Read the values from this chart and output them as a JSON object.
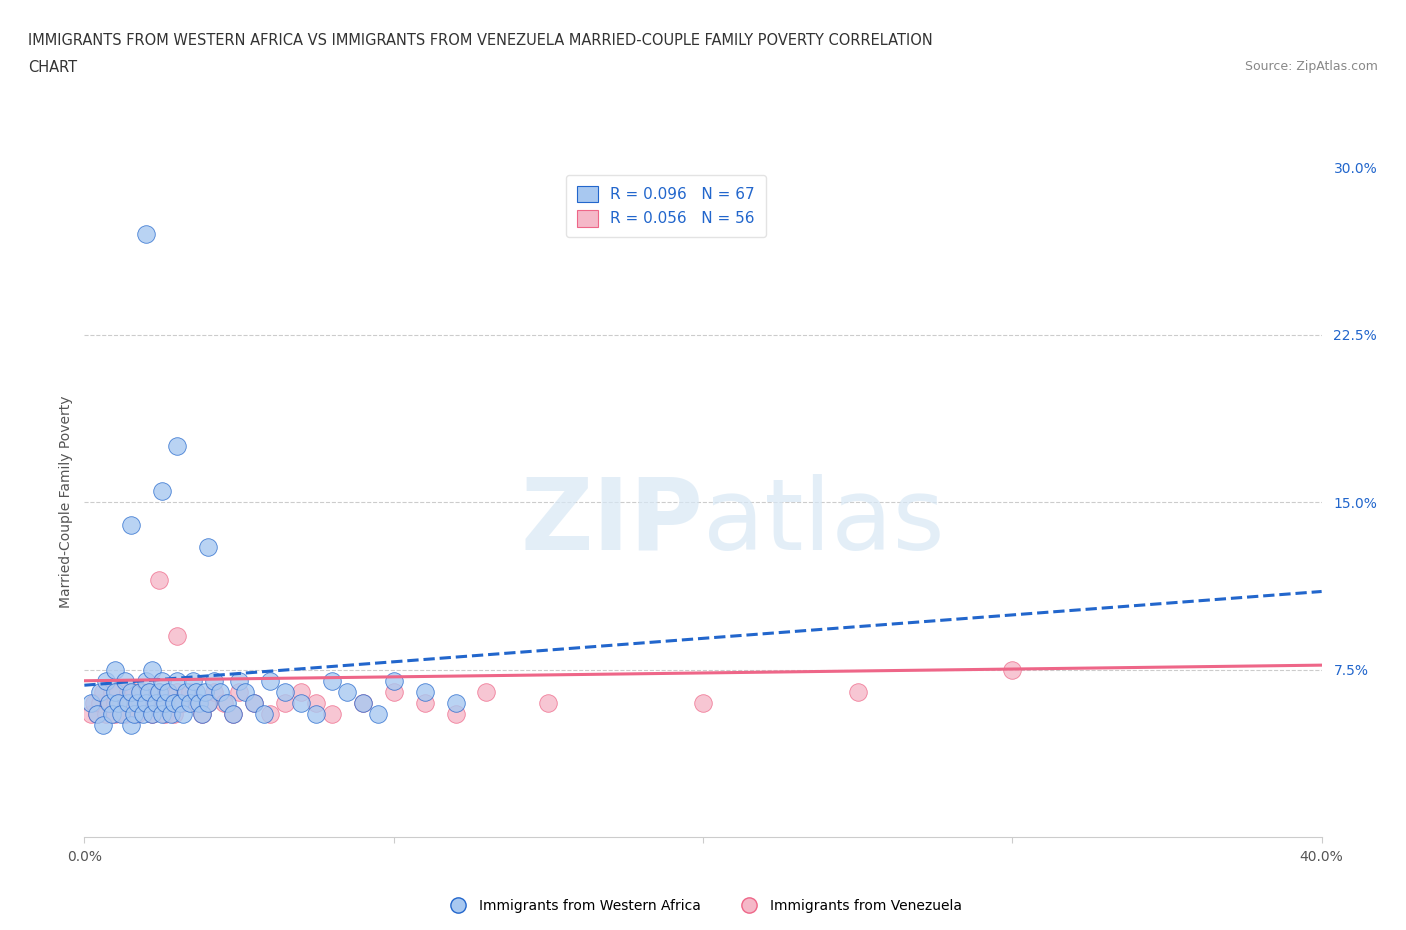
{
  "title_line1": "IMMIGRANTS FROM WESTERN AFRICA VS IMMIGRANTS FROM VENEZUELA MARRIED-COUPLE FAMILY POVERTY CORRELATION",
  "title_line2": "CHART",
  "source": "Source: ZipAtlas.com",
  "ylabel": "Married-Couple Family Poverty",
  "xlim": [
    0.0,
    0.4
  ],
  "ylim": [
    0.0,
    0.3
  ],
  "xticks": [
    0.0,
    0.1,
    0.2,
    0.3,
    0.4
  ],
  "xticklabels": [
    "0.0%",
    "",
    "",
    "",
    "40.0%"
  ],
  "yticks_right": [
    0.075,
    0.15,
    0.225,
    0.3
  ],
  "yticklabels_right": [
    "7.5%",
    "15.0%",
    "22.5%",
    "30.0%"
  ],
  "blue_color": "#A8C8F0",
  "pink_color": "#F5B8C8",
  "blue_line_color": "#2266CC",
  "pink_line_color": "#EE6688",
  "blue_R": 0.096,
  "blue_N": 67,
  "pink_R": 0.056,
  "pink_N": 56,
  "legend_label_blue": "Immigrants from Western Africa",
  "legend_label_pink": "Immigrants from Venezuela",
  "hline_y": [
    0.075,
    0.15,
    0.225
  ],
  "hline_color": "#CCCCCC",
  "background_color": "#FFFFFF",
  "tick_color_right": "#2266CC",
  "blue_scatter_x": [
    0.002,
    0.004,
    0.005,
    0.006,
    0.007,
    0.008,
    0.009,
    0.01,
    0.01,
    0.011,
    0.012,
    0.013,
    0.014,
    0.015,
    0.015,
    0.016,
    0.017,
    0.018,
    0.019,
    0.02,
    0.02,
    0.021,
    0.022,
    0.022,
    0.023,
    0.024,
    0.025,
    0.025,
    0.026,
    0.027,
    0.028,
    0.029,
    0.03,
    0.031,
    0.032,
    0.033,
    0.034,
    0.035,
    0.036,
    0.037,
    0.038,
    0.039,
    0.04,
    0.042,
    0.044,
    0.046,
    0.048,
    0.05,
    0.052,
    0.055,
    0.058,
    0.06,
    0.065,
    0.07,
    0.075,
    0.08,
    0.085,
    0.09,
    0.095,
    0.1,
    0.11,
    0.12,
    0.04,
    0.025,
    0.03,
    0.02,
    0.015
  ],
  "blue_scatter_y": [
    0.06,
    0.055,
    0.065,
    0.05,
    0.07,
    0.06,
    0.055,
    0.075,
    0.065,
    0.06,
    0.055,
    0.07,
    0.06,
    0.065,
    0.05,
    0.055,
    0.06,
    0.065,
    0.055,
    0.06,
    0.07,
    0.065,
    0.055,
    0.075,
    0.06,
    0.065,
    0.055,
    0.07,
    0.06,
    0.065,
    0.055,
    0.06,
    0.07,
    0.06,
    0.055,
    0.065,
    0.06,
    0.07,
    0.065,
    0.06,
    0.055,
    0.065,
    0.06,
    0.07,
    0.065,
    0.06,
    0.055,
    0.07,
    0.065,
    0.06,
    0.055,
    0.07,
    0.065,
    0.06,
    0.055,
    0.07,
    0.065,
    0.06,
    0.055,
    0.07,
    0.065,
    0.06,
    0.13,
    0.155,
    0.175,
    0.27,
    0.14
  ],
  "pink_scatter_x": [
    0.002,
    0.003,
    0.004,
    0.005,
    0.006,
    0.007,
    0.008,
    0.009,
    0.01,
    0.01,
    0.011,
    0.012,
    0.013,
    0.014,
    0.015,
    0.016,
    0.017,
    0.018,
    0.019,
    0.02,
    0.021,
    0.022,
    0.023,
    0.024,
    0.025,
    0.026,
    0.027,
    0.028,
    0.029,
    0.03,
    0.032,
    0.034,
    0.036,
    0.038,
    0.04,
    0.042,
    0.045,
    0.048,
    0.05,
    0.055,
    0.06,
    0.065,
    0.07,
    0.075,
    0.08,
    0.09,
    0.1,
    0.11,
    0.12,
    0.13,
    0.15,
    0.2,
    0.25,
    0.3,
    0.024,
    0.03
  ],
  "pink_scatter_y": [
    0.055,
    0.06,
    0.055,
    0.06,
    0.065,
    0.055,
    0.06,
    0.065,
    0.055,
    0.06,
    0.065,
    0.06,
    0.055,
    0.065,
    0.06,
    0.065,
    0.055,
    0.06,
    0.065,
    0.06,
    0.065,
    0.055,
    0.06,
    0.065,
    0.06,
    0.055,
    0.065,
    0.06,
    0.055,
    0.065,
    0.06,
    0.065,
    0.06,
    0.055,
    0.06,
    0.065,
    0.06,
    0.055,
    0.065,
    0.06,
    0.055,
    0.06,
    0.065,
    0.06,
    0.055,
    0.06,
    0.065,
    0.06,
    0.055,
    0.065,
    0.06,
    0.06,
    0.065,
    0.075,
    0.115,
    0.09
  ],
  "blue_trendline_x": [
    0.0,
    0.4
  ],
  "blue_trendline_y": [
    0.068,
    0.11
  ],
  "pink_trendline_x": [
    0.0,
    0.4
  ],
  "pink_trendline_y": [
    0.07,
    0.077
  ]
}
